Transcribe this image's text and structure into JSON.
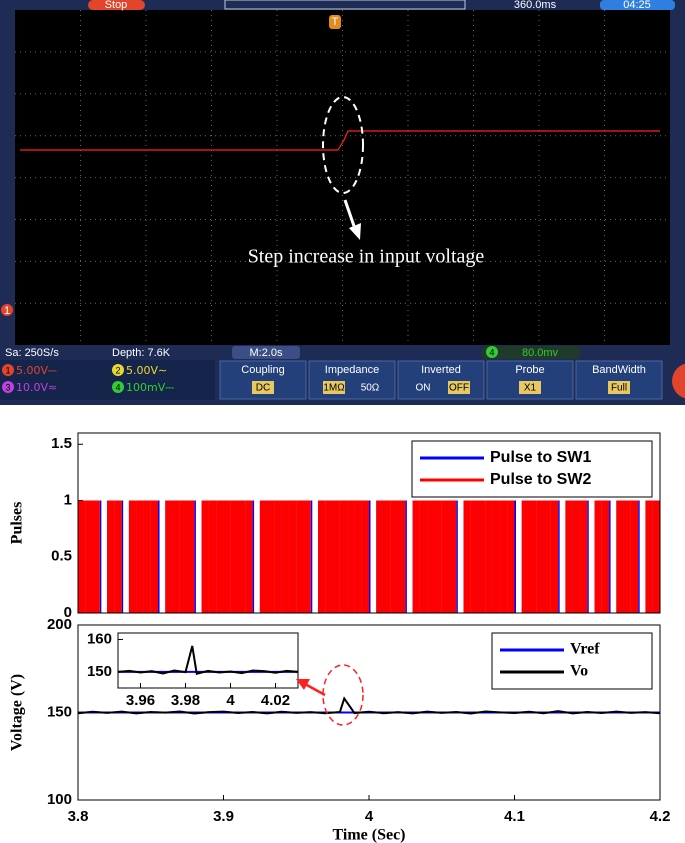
{
  "oscilloscope": {
    "status": "Stop",
    "offset": "360.0ms",
    "clock": "04:25",
    "trigger_marker": "T",
    "channel_marker": "1",
    "annotation": "Step increase in input voltage",
    "sample_rate": "Sa: 250S/s",
    "depth": "Depth: 7.6K",
    "time_scale": "M:2.0s",
    "trigger_channel": "4",
    "trigger_level": "80.0mv",
    "channels": [
      {
        "num": "1",
        "scale": "5.00V⎓"
      },
      {
        "num": "2",
        "scale": "5.00V∼"
      },
      {
        "num": "3",
        "scale": "10.0V≈"
      },
      {
        "num": "4",
        "scale": "100mV⎓"
      }
    ],
    "menu": [
      {
        "title": "Coupling",
        "options": [
          "DC"
        ]
      },
      {
        "title": "Impedance",
        "options": [
          "1MΩ",
          "50Ω"
        ]
      },
      {
        "title": "Inverted",
        "options": [
          "ON",
          "OFF"
        ]
      },
      {
        "title": "Probe",
        "options": [
          "X1"
        ]
      },
      {
        "title": "BandWidth",
        "options": [
          "Full"
        ]
      }
    ]
  },
  "chart_data": [
    {
      "type": "pulse",
      "ylabel": "Pulses",
      "xlim": [
        3.8,
        4.2
      ],
      "ylim": [
        0,
        1.6
      ],
      "yticks": [
        0,
        0.5,
        1,
        1.5
      ],
      "legend": "northeast",
      "x": [
        3.8,
        3.805,
        3.81,
        3.815,
        3.82,
        3.825,
        3.83,
        3.835,
        3.84,
        3.845,
        3.85,
        3.855,
        3.86,
        3.865,
        3.87,
        3.875,
        3.88,
        3.885,
        3.89,
        3.895,
        3.9,
        3.905,
        3.91,
        3.915,
        3.92,
        3.925,
        3.93,
        3.935,
        3.94,
        3.945,
        3.95,
        3.955,
        3.96,
        3.965,
        3.97,
        3.975,
        3.98,
        3.985,
        3.99,
        3.995,
        4,
        4.005,
        4.01,
        4.015,
        4.02,
        4.025,
        4.03,
        4.035,
        4.04,
        4.045,
        4.05,
        4.055,
        4.06,
        4.065,
        4.07,
        4.075,
        4.08,
        4.085,
        4.09,
        4.095,
        4.1,
        4.105,
        4.11,
        4.115,
        4.12,
        4.125,
        4.13,
        4.135,
        4.14,
        4.145,
        4.15,
        4.155,
        4.16,
        4.165,
        4.17,
        4.175,
        4.18,
        4.185,
        4.19,
        4.195
      ],
      "series": [
        {
          "name": "Pulse to SW1",
          "color": "#0000ff",
          "values": [
            1,
            1,
            1,
            1,
            1,
            1,
            1,
            1,
            1,
            1,
            1,
            1,
            1,
            1,
            1,
            1,
            1,
            1,
            1,
            1,
            1,
            1,
            1,
            1,
            1,
            1,
            1,
            1,
            1,
            1,
            1,
            1,
            1,
            1,
            1,
            1,
            1,
            1,
            1,
            1,
            1,
            1,
            1,
            1,
            1,
            1,
            1,
            1,
            1,
            1,
            1,
            1,
            1,
            1,
            1,
            1,
            1,
            1,
            1,
            1,
            1,
            1,
            1,
            1,
            1,
            1,
            1,
            1,
            1,
            1,
            1,
            1,
            1,
            1,
            1,
            1,
            1,
            1,
            1,
            1
          ]
        },
        {
          "name": "Pulse to SW2",
          "color": "#ff0000",
          "values": [
            1,
            1,
            1,
            0,
            1,
            1,
            0,
            1,
            1,
            1,
            1,
            0,
            1,
            1,
            1,
            1,
            0,
            1,
            1,
            1,
            1,
            1,
            1,
            1,
            0,
            1,
            1,
            1,
            1,
            1,
            1,
            1,
            0,
            1,
            1,
            1,
            1,
            1,
            1,
            1,
            0,
            1,
            1,
            1,
            1,
            0,
            1,
            1,
            1,
            1,
            1,
            1,
            0,
            1,
            1,
            1,
            1,
            1,
            1,
            1,
            0,
            1,
            1,
            1,
            1,
            1,
            0,
            1,
            1,
            1,
            0,
            1,
            1,
            0,
            1,
            1,
            1,
            0,
            1,
            1
          ]
        }
      ]
    },
    {
      "type": "line",
      "xlabel": "Time (Sec)",
      "ylabel": "Voltage (V)",
      "xlim": [
        3.8,
        4.2
      ],
      "xticks": [
        3.8,
        3.9,
        4,
        4.1,
        4.2
      ],
      "ylim": [
        100,
        200
      ],
      "yticks": [
        100,
        150,
        200
      ],
      "legend": "northeast",
      "x": [
        3.8,
        3.81,
        3.82,
        3.83,
        3.84,
        3.85,
        3.86,
        3.87,
        3.88,
        3.89,
        3.9,
        3.91,
        3.92,
        3.93,
        3.94,
        3.95,
        3.96,
        3.97,
        3.98,
        3.983,
        3.99,
        4,
        4.01,
        4.02,
        4.03,
        4.04,
        4.05,
        4.06,
        4.07,
        4.08,
        4.09,
        4.1,
        4.11,
        4.12,
        4.13,
        4.14,
        4.15,
        4.16,
        4.17,
        4.18,
        4.19,
        4.2
      ],
      "series": [
        {
          "name": "Vref",
          "color": "#0000ff",
          "values": [
            150,
            150,
            150,
            150,
            150,
            150,
            150,
            150,
            150,
            150,
            150,
            150,
            150,
            150,
            150,
            150,
            150,
            150,
            150,
            150,
            150,
            150,
            150,
            150,
            150,
            150,
            150,
            150,
            150,
            150,
            150,
            150,
            150,
            150,
            150,
            150,
            150,
            150,
            150,
            150,
            150,
            150
          ]
        },
        {
          "name": "Vo",
          "color": "#000000",
          "values": [
            149.6,
            150.4,
            149.8,
            150.5,
            149.5,
            150.3,
            149.9,
            150.6,
            149.4,
            150.2,
            150.5,
            149.7,
            150.3,
            149.5,
            150.4,
            149.8,
            150.2,
            149.6,
            150.3,
            158,
            149.7,
            150.4,
            149.6,
            150.2,
            149.5,
            150.5,
            149.8,
            150.3,
            149.4,
            150.6,
            150.1,
            149.7,
            150.4,
            149.6,
            150.8,
            149.5,
            150.3,
            149.7,
            150.5,
            149.8,
            150.2,
            149.6
          ]
        }
      ]
    },
    {
      "type": "line",
      "xlim": [
        3.95,
        4.03
      ],
      "xticks": [
        3.96,
        3.98,
        4,
        4.02
      ],
      "ylim": [
        145,
        162
      ],
      "yticks": [
        150,
        160
      ],
      "x": [
        3.95,
        3.955,
        3.96,
        3.965,
        3.97,
        3.975,
        3.98,
        3.983,
        3.985,
        3.99,
        3.995,
        4,
        4.005,
        4.01,
        4.015,
        4.02,
        4.025,
        4.03
      ],
      "series": [
        {
          "color": "#0000ff",
          "values": [
            150,
            150,
            150,
            150,
            150,
            150,
            150,
            150,
            150,
            150,
            150,
            150,
            150,
            150,
            150,
            150,
            150,
            150
          ]
        },
        {
          "color": "#000000",
          "values": [
            150,
            150.3,
            149.8,
            150.2,
            149.5,
            150.4,
            149.9,
            158,
            149.4,
            150.3,
            149.8,
            150.1,
            149.6,
            150.4,
            150.2,
            149.7,
            150.3,
            150
          ]
        }
      ]
    }
  ]
}
